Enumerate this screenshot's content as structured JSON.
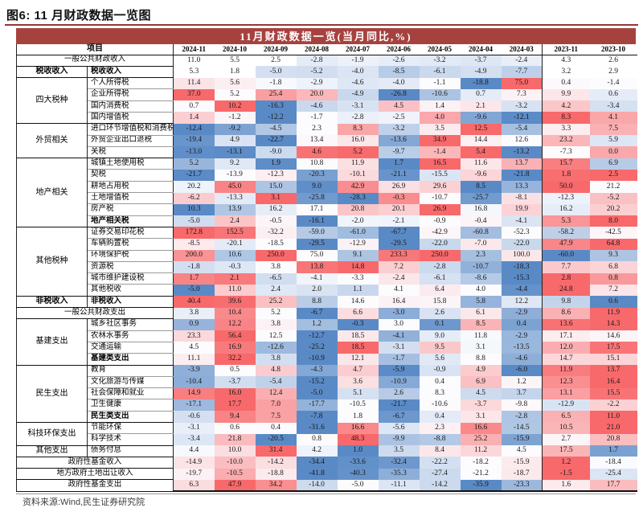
{
  "figure_title": "图6: 11 月财政数据一览图",
  "source_note": "资料来源:Wind,民生证券研究院",
  "colors": {
    "banner_red": "#A6423E",
    "title_rule_red": "#943634",
    "scale_red_max": "#F8696B",
    "scale_mid_white": "#FCFCFF",
    "scale_blue_min": "#5A8AC6"
  },
  "chart_data": {
    "type": "heatmap",
    "title": "11月财政数据一览(当月同比,%)",
    "item_header": "项目",
    "columns": [
      "2024-11",
      "2024-10",
      "2024-09",
      "2024-08",
      "2024-07",
      "2024-06",
      "2024-05",
      "2024-04",
      "2024-03",
      "2023-11",
      "2023-10"
    ],
    "color_scale": "per-row: min=blue, median=white, max=red; rows marked muted show only light blue for negatives",
    "rows": [
      {
        "full": true,
        "label": "一般公共财政收入",
        "muted": true,
        "sep": true,
        "v": [
          11.0,
          5.5,
          2.5,
          -2.8,
          -1.9,
          -2.6,
          -3.2,
          -3.7,
          -2.4,
          4.3,
          2.6
        ]
      },
      {
        "g": "税收收入",
        "gspan": 1,
        "gbold": true,
        "label": "税收收入",
        "bold": true,
        "muted": true,
        "sep": true,
        "v": [
          5.3,
          1.8,
          -5.0,
          -5.2,
          -4.0,
          -8.5,
          -6.1,
          -4.9,
          -7.7,
          3.2,
          2.9
        ]
      },
      {
        "g": "四大税种",
        "gspan": 4,
        "label": "个人所得税",
        "v": [
          11.4,
          5.6,
          -1.8,
          -2.9,
          -4.6,
          -4.0,
          -1.1,
          -18.8,
          75.0,
          0.4,
          -1.4
        ]
      },
      {
        "label": "企业所得税",
        "v": [
          37.0,
          5.2,
          25.4,
          20.0,
          -4.9,
          -26.8,
          -10.6,
          0.7,
          7.3,
          9.9,
          0.6
        ]
      },
      {
        "label": "国内消费税",
        "v": [
          0.7,
          10.2,
          -16.3,
          -4.6,
          -3.1,
          4.5,
          1.4,
          2.1,
          -3.2,
          4.2,
          -3.4
        ]
      },
      {
        "label": "国内增值税",
        "sep": true,
        "v": [
          1.4,
          -1.2,
          -12.2,
          -1.7,
          -2.8,
          -2.5,
          4.0,
          -9.6,
          -12.1,
          8.3,
          4.1
        ]
      },
      {
        "g": "外贸相关",
        "gspan": 3,
        "label": "进口环节增值税和消费税",
        "v": [
          -12.4,
          -9.2,
          -4.5,
          2.3,
          8.3,
          -3.2,
          3.5,
          12.5,
          -5.4,
          3.3,
          7.5
        ]
      },
      {
        "label": "外贸企业出口退税",
        "v": [
          -19.4,
          4.9,
          -22.7,
          13.4,
          16.0,
          -13.6,
          34.9,
          14.4,
          12.6,
          23.2,
          5.9
        ]
      },
      {
        "label": "关税",
        "sep": true,
        "v": [
          -13.0,
          -13.1,
          -9.0,
          4.6,
          5.2,
          -9.7,
          -1.4,
          5.4,
          -13.2,
          -7.3,
          0.0
        ]
      },
      {
        "g": "地产相关",
        "gspan": 6,
        "label": "城镇土地使用税",
        "v": [
          5.2,
          9.2,
          1.9,
          10.8,
          11.9,
          1.7,
          16.5,
          11.6,
          13.7,
          15.7,
          6.9
        ]
      },
      {
        "label": "契税",
        "v": [
          -21.7,
          -13.9,
          -12.3,
          -20.3,
          -10.1,
          -21.1,
          -15.5,
          -9.6,
          -21.8,
          1.8,
          2.5
        ]
      },
      {
        "label": "耕地占用税",
        "v": [
          20.2,
          45.0,
          15.0,
          9.0,
          42.9,
          26.9,
          29.6,
          8.5,
          13.3,
          50.0,
          21.2
        ]
      },
      {
        "label": "土地增值税",
        "v": [
          -6.2,
          -13.3,
          3.1,
          -25.8,
          -28.3,
          -0.3,
          -10.7,
          -25.7,
          -8.1,
          -12.3,
          -5.2
        ]
      },
      {
        "label": "房产税",
        "v": [
          10.3,
          13.9,
          16.2,
          17.1,
          20.8,
          20.1,
          26.9,
          16.8,
          19.9,
          16.2,
          20.2
        ]
      },
      {
        "label": "地产相关税",
        "bold": true,
        "sep": true,
        "v": [
          -5.0,
          2.4,
          -0.5,
          -16.1,
          -2.0,
          -2.1,
          -0.9,
          -0.4,
          -4.1,
          5.3,
          8.0
        ]
      },
      {
        "g": "其他税种",
        "gspan": 6,
        "label": "证券交易印花税",
        "v": [
          172.8,
          152.5,
          -32.2,
          -59.0,
          -61.0,
          -67.7,
          -42.9,
          -60.8,
          -52.3,
          -58.2,
          -42.5
        ]
      },
      {
        "label": "车辆购置税",
        "v": [
          -8.5,
          -20.1,
          -18.5,
          -29.5,
          -12.9,
          -29.5,
          -22.0,
          -7.0,
          -22.0,
          47.9,
          64.8
        ]
      },
      {
        "label": "环境保护税",
        "v": [
          200.0,
          10.6,
          250.0,
          75.0,
          9.1,
          233.3,
          250.0,
          2.3,
          100.0,
          -60.0,
          9.3
        ]
      },
      {
        "label": "资源税",
        "v": [
          -1.8,
          -0.3,
          3.8,
          13.8,
          14.8,
          7.2,
          -2.8,
          -10.7,
          -18.3,
          7.7,
          6.8
        ]
      },
      {
        "label": "城市维护建设税",
        "v": [
          1.7,
          2.1,
          -6.5,
          -4.1,
          -3.3,
          -2.4,
          -6.1,
          -8.6,
          -15.3,
          2.8,
          0.8
        ]
      },
      {
        "label": "其他税收",
        "sep": true,
        "v": [
          -5.0,
          11.0,
          2.4,
          2.0,
          1.1,
          4.1,
          6.4,
          4.0,
          -4.4,
          24.8,
          7.2
        ]
      },
      {
        "g": "非税收入",
        "gspan": 1,
        "gbold": true,
        "label": "非税收入",
        "bold": true,
        "sep": true,
        "v": [
          40.4,
          39.6,
          25.2,
          8.8,
          14.6,
          16.4,
          15.8,
          5.8,
          12.2,
          9.8,
          0.6
        ]
      },
      {
        "full": true,
        "label": "一般公共财政支出",
        "sep": true,
        "v": [
          3.8,
          10.4,
          5.2,
          -6.7,
          6.6,
          -3.0,
          2.6,
          6.1,
          -2.9,
          8.6,
          11.9
        ]
      },
      {
        "g": "基建支出",
        "gspan": 4,
        "label": "城乡社区事务",
        "v": [
          0.9,
          12.2,
          3.8,
          1.2,
          -0.3,
          3.0,
          0.1,
          8.5,
          0.4,
          13.6,
          14.3
        ]
      },
      {
        "label": "农林水事务",
        "v": [
          23.3,
          56.4,
          12.5,
          -12.7,
          18.5,
          -4.1,
          9.0,
          11.8,
          -2.9,
          17.1,
          14.6
        ]
      },
      {
        "label": "交通运输",
        "v": [
          4.5,
          16.9,
          -12.6,
          -25.2,
          18.5,
          -3.1,
          9.5,
          3.1,
          -13.5,
          12.0,
          17.5
        ]
      },
      {
        "label": "基建类支出",
        "bold": true,
        "sep": true,
        "v": [
          11.1,
          32.2,
          3.8,
          -10.9,
          12.1,
          -1.7,
          5.6,
          8.8,
          -4.6,
          14.7,
          15.1
        ]
      },
      {
        "g": "民生支出",
        "gspan": 5,
        "label": "教育",
        "v": [
          -3.9,
          0.5,
          4.8,
          -4.3,
          4.7,
          -5.9,
          -0.9,
          4.9,
          -6.0,
          11.9,
          13.7
        ]
      },
      {
        "label": "文化旅游与传媒",
        "v": [
          -10.4,
          -3.7,
          -5.4,
          -15.2,
          3.6,
          -10.9,
          0.4,
          6.9,
          1.2,
          12.3,
          16.4
        ]
      },
      {
        "label": "社会保障和就业",
        "v": [
          14.9,
          16.0,
          12.4,
          -5.0,
          5.1,
          2.6,
          8.3,
          4.5,
          3.7,
          13.1,
          15.5
        ]
      },
      {
        "label": "卫生健康",
        "v": [
          -17.1,
          17.7,
          7.0,
          -17.7,
          -10.5,
          -21.7,
          -10.6,
          -3.7,
          -9.8,
          -12.9,
          -2.2
        ]
      },
      {
        "label": "民生类支出",
        "bold": true,
        "sep": true,
        "v": [
          -0.6,
          9.4,
          7.5,
          -7.8,
          1.8,
          -6.7,
          0.4,
          3.1,
          -2.8,
          6.5,
          11.0
        ]
      },
      {
        "g": "科技环保支出",
        "gspan": 2,
        "label": "节能环保",
        "v": [
          -3.1,
          0.6,
          0.4,
          -31.6,
          16.6,
          -5.6,
          2.3,
          16.6,
          -14.5,
          10.5,
          21.0
        ]
      },
      {
        "label": "科学技术",
        "sep": true,
        "v": [
          -3.4,
          21.8,
          -20.5,
          0.8,
          48.3,
          -9.9,
          -8.8,
          25.2,
          -15.9,
          2.7,
          20.8
        ]
      },
      {
        "g": "其他支出",
        "gspan": 1,
        "label": "债务付息",
        "sep": true,
        "v": [
          4.4,
          10.0,
          31.4,
          4.2,
          1.0,
          3.5,
          8.4,
          11.2,
          4.5,
          17.5,
          1.7
        ]
      },
      {
        "full": true,
        "label": "政府性基金收入",
        "sep": true,
        "v": [
          -14.9,
          -10.0,
          -14.2,
          -34.4,
          -33.6,
          -32.4,
          -22.2,
          -18.2,
          -15.9,
          1.2,
          -18.4
        ]
      },
      {
        "full": true,
        "label": "地方政府土地出让收入",
        "sep": true,
        "v": [
          -19.7,
          -10.5,
          -18.8,
          -41.8,
          -40.3,
          -35.3,
          -27.4,
          -21.2,
          -18.7,
          -1.5,
          -25.4
        ]
      },
      {
        "full": true,
        "label": "政府性基金支出",
        "sep": true,
        "v": [
          6.3,
          47.9,
          34.2,
          -14.0,
          -5.0,
          -11.1,
          -14.2,
          -35.9,
          -23.3,
          1.6,
          17.7
        ]
      }
    ]
  }
}
